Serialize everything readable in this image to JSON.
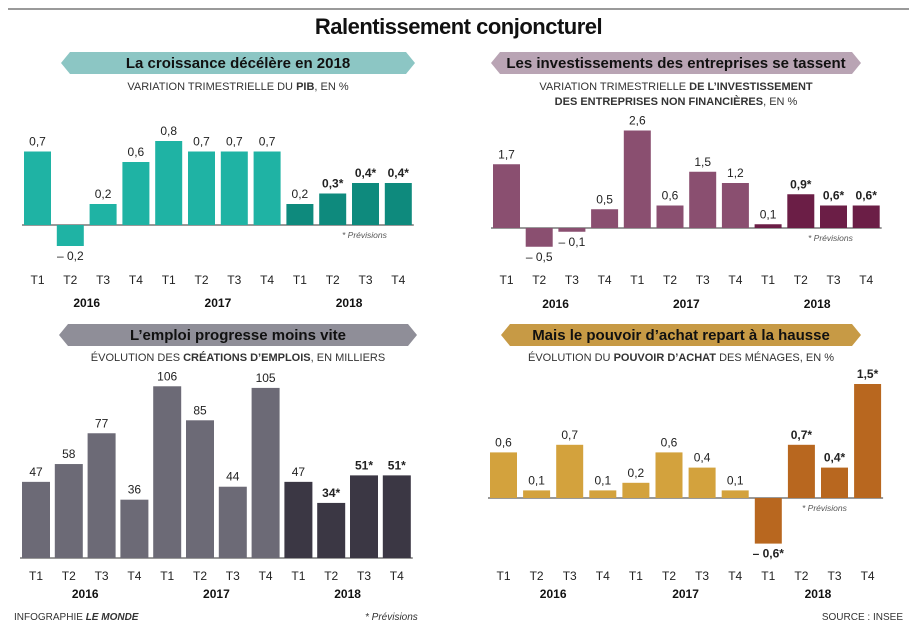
{
  "page": {
    "title": "Ralentissement conjoncturel",
    "credit_prefix": "INFOGRAPHIE",
    "credit_name": "LE MONDE",
    "footnote": "* Prévisions",
    "source": "SOURCE : INSEE"
  },
  "chart_data": [
    {
      "type": "bar",
      "title": "La croissance décélère en 2018",
      "subtitle_parts": [
        {
          "text": "VARIATION TRIMESTRIELLE DU ",
          "bold": false
        },
        {
          "text": "PIB",
          "bold": true
        },
        {
          "text": ", EN %",
          "bold": false
        }
      ],
      "categories": [
        "T1",
        "T2",
        "T3",
        "T4",
        "T1",
        "T2",
        "T3",
        "T4",
        "T1",
        "T2",
        "T3",
        "T4"
      ],
      "years": [
        "2016",
        "2017",
        "2018"
      ],
      "values": [
        0.7,
        -0.2,
        0.2,
        0.6,
        0.8,
        0.7,
        0.7,
        0.7,
        0.2,
        0.3,
        0.4,
        0.4
      ],
      "labels": [
        "0,7",
        "– 0,2",
        "0,2",
        "0,6",
        "0,8",
        "0,7",
        "0,7",
        "0,7",
        "0,2",
        "0,3*",
        "0,4*",
        "0,4*"
      ],
      "forecast": [
        false,
        false,
        false,
        false,
        false,
        false,
        false,
        false,
        false,
        true,
        true,
        true
      ],
      "note": "* Prévisions",
      "colors": {
        "banner": "#8cc6c4",
        "bar": "#1fb3a4",
        "bar_2018": "#0e8a7d"
      }
    },
    {
      "type": "bar",
      "title": "Les investissements des entreprises se tassent",
      "subtitle_parts": [
        {
          "text": "VARIATION TRIMESTRIELLE ",
          "bold": false
        },
        {
          "text": "DE L’INVESTISSEMENT",
          "bold": true
        },
        {
          "text": "DES ENTREPRISES NON FINANCIÈRES",
          "bold": true,
          "newline": true
        },
        {
          "text": ", EN %",
          "bold": false
        }
      ],
      "categories": [
        "T1",
        "T2",
        "T3",
        "T4",
        "T1",
        "T2",
        "T3",
        "T4",
        "T1",
        "T2",
        "T3",
        "T4"
      ],
      "years": [
        "2016",
        "2017",
        "2018"
      ],
      "values": [
        1.7,
        -0.5,
        -0.1,
        0.5,
        2.6,
        0.6,
        1.5,
        1.2,
        0.1,
        0.9,
        0.6,
        0.6
      ],
      "labels": [
        "1,7",
        "– 0,5",
        "– 0,1",
        "0,5",
        "2,6",
        "0,6",
        "1,5",
        "1,2",
        "0,1",
        "0,9*",
        "0,6*",
        "0,6*"
      ],
      "forecast": [
        false,
        false,
        false,
        false,
        false,
        false,
        false,
        false,
        false,
        true,
        true,
        true
      ],
      "note": "* Prévisions",
      "colors": {
        "banner": "#b9a4b4",
        "bar": "#8a4f70",
        "bar_2018": "#6b1e46"
      }
    },
    {
      "type": "bar",
      "title": "L’emploi progresse moins vite",
      "subtitle_parts": [
        {
          "text": "ÉVOLUTION DES ",
          "bold": false
        },
        {
          "text": "CRÉATIONS D’EMPLOIS",
          "bold": true
        },
        {
          "text": ", EN MILLIERS",
          "bold": false
        }
      ],
      "categories": [
        "T1",
        "T2",
        "T3",
        "T4",
        "T1",
        "T2",
        "T3",
        "T4",
        "T1",
        "T2",
        "T3",
        "T4"
      ],
      "years": [
        "2016",
        "2017",
        "2018"
      ],
      "values": [
        47,
        58,
        77,
        36,
        106,
        85,
        44,
        105,
        47,
        34,
        51,
        51
      ],
      "labels": [
        "47",
        "58",
        "77",
        "36",
        "106",
        "85",
        "44",
        "105",
        "47",
        "34*",
        "51*",
        "51*"
      ],
      "forecast": [
        false,
        false,
        false,
        false,
        false,
        false,
        false,
        false,
        false,
        true,
        true,
        true
      ],
      "note": "",
      "colors": {
        "banner": "#8f8e98",
        "bar": "#6c6a76",
        "bar_2018": "#3b3744"
      }
    },
    {
      "type": "bar",
      "title": "Mais le pouvoir d’achat repart à la hausse",
      "subtitle_parts": [
        {
          "text": "ÉVOLUTION DU ",
          "bold": false
        },
        {
          "text": "POUVOIR D’ACHAT",
          "bold": true
        },
        {
          "text": " DES MÉNAGES, EN %",
          "bold": false
        }
      ],
      "categories": [
        "T1",
        "T2",
        "T3",
        "T4",
        "T1",
        "T2",
        "T3",
        "T4",
        "T1",
        "T2",
        "T3",
        "T4"
      ],
      "years": [
        "2016",
        "2017",
        "2018"
      ],
      "values": [
        0.6,
        0.1,
        0.7,
        0.1,
        0.2,
        0.6,
        0.4,
        0.1,
        -0.6,
        0.7,
        0.4,
        1.5
      ],
      "labels": [
        "0,6",
        "0,1",
        "0,7",
        "0,1",
        "0,2",
        "0,6",
        "0,4",
        "0,1",
        "– 0,6*",
        "0,7*",
        "0,4*",
        "1,5*"
      ],
      "forecast": [
        false,
        false,
        false,
        false,
        false,
        false,
        false,
        false,
        true,
        true,
        true,
        true
      ],
      "note": "* Prévisions",
      "colors": {
        "banner": "#c79a45",
        "bar": "#d3a23d",
        "bar_2018": "#b8671f"
      }
    }
  ]
}
